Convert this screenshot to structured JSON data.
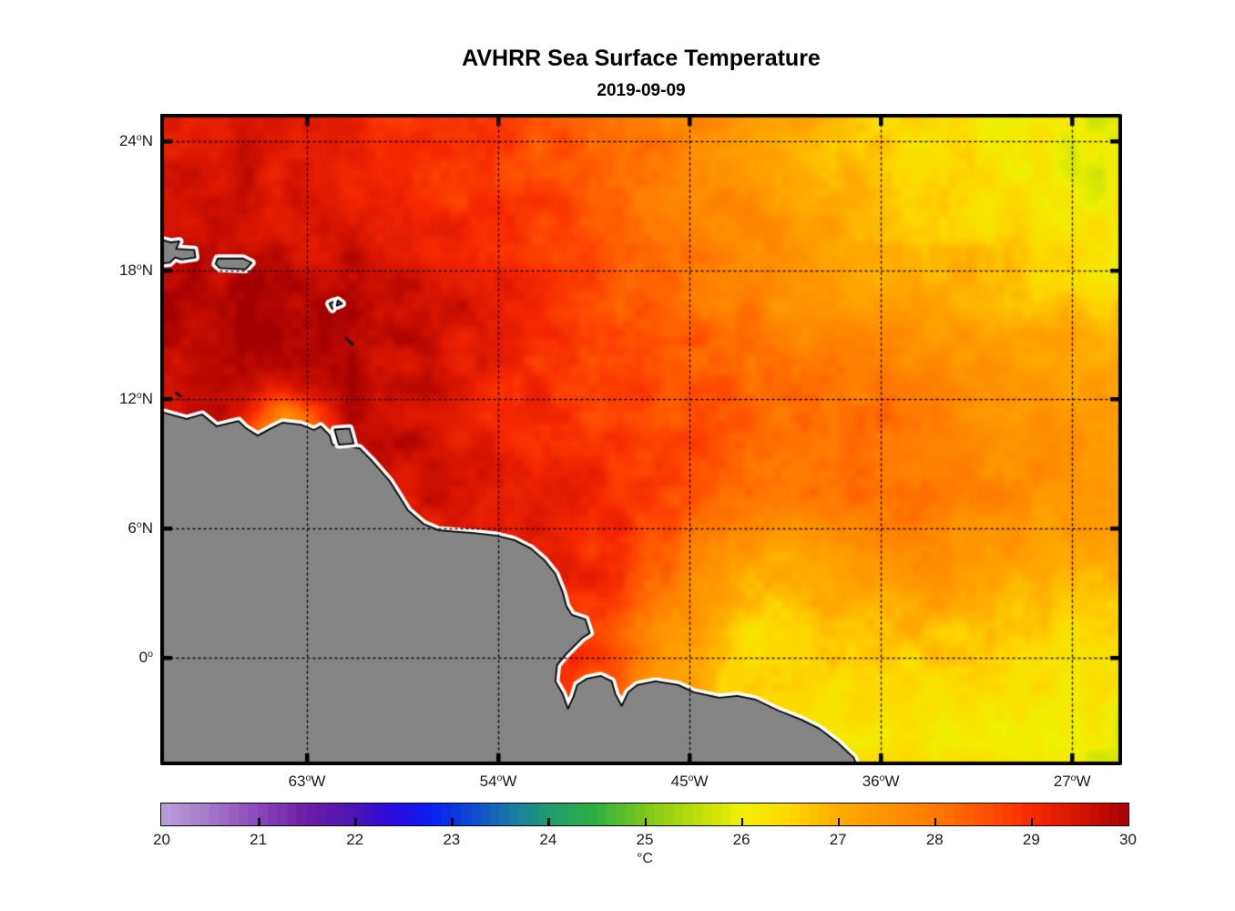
{
  "figure": {
    "title": "AVHRR Sea Surface Temperature",
    "subtitle": "2019-09-09"
  },
  "axes": {
    "degree_glyph": "o",
    "lon_min": -69.9,
    "lon_max": -24.65,
    "lat_min": -5.0,
    "lat_max": 25.27,
    "x_ticks": [
      {
        "lon": -63,
        "text": "63",
        "suffix": "W"
      },
      {
        "lon": -54,
        "text": "54",
        "suffix": "W"
      },
      {
        "lon": -45,
        "text": "45",
        "suffix": "W"
      },
      {
        "lon": -36,
        "text": "36",
        "suffix": "W"
      },
      {
        "lon": -27,
        "text": "27",
        "suffix": "W"
      }
    ],
    "y_ticks": [
      {
        "lat": 24,
        "text": "24",
        "suffix": "N"
      },
      {
        "lat": 18,
        "text": "18",
        "suffix": "N"
      },
      {
        "lat": 12,
        "text": "12",
        "suffix": "N"
      },
      {
        "lat": 6,
        "text": "6",
        "suffix": "N"
      },
      {
        "lat": 0,
        "text": "0",
        "suffix": ""
      }
    ],
    "frame_color": "#000000",
    "grid_style": "dotted"
  },
  "colorbar": {
    "min": 20,
    "max": 30,
    "tick_labels": [
      "20",
      "21",
      "22",
      "23",
      "24",
      "25",
      "26",
      "27",
      "28",
      "29",
      "30"
    ],
    "inner_ticks": [
      21,
      22,
      23,
      24,
      25,
      26,
      27,
      28,
      29
    ],
    "unit": "°C",
    "segments": 100,
    "stops": [
      [
        0.0,
        "#B9A0D8"
      ],
      [
        0.05,
        "#A478CA"
      ],
      [
        0.1,
        "#8A48B8"
      ],
      [
        0.15,
        "#6C1EA4"
      ],
      [
        0.2,
        "#4A14B4"
      ],
      [
        0.24,
        "#2A0ADF"
      ],
      [
        0.28,
        "#0A20F0"
      ],
      [
        0.32,
        "#0E48D0"
      ],
      [
        0.36,
        "#1878A8"
      ],
      [
        0.4,
        "#1F9A70"
      ],
      [
        0.45,
        "#2FB040"
      ],
      [
        0.5,
        "#7CC818"
      ],
      [
        0.55,
        "#B8DC0C"
      ],
      [
        0.6,
        "#F0F000"
      ],
      [
        0.65,
        "#FFD800"
      ],
      [
        0.7,
        "#FFAC00"
      ],
      [
        0.75,
        "#FF9400"
      ],
      [
        0.8,
        "#FF7A00"
      ],
      [
        0.85,
        "#FF5200"
      ],
      [
        0.9,
        "#F62800"
      ],
      [
        0.95,
        "#D41400"
      ],
      [
        1.0,
        "#A40000"
      ]
    ]
  },
  "chart_data": {
    "type": "heatmap",
    "title": "AVHRR Sea Surface Temperature",
    "date": "2019-09-09",
    "variable": "sea surface temperature",
    "units": "degC",
    "colormap_range": [
      20,
      30
    ],
    "lon": [
      -70,
      -67,
      -64,
      -61,
      -58,
      -55,
      -52,
      -49,
      -46,
      -43,
      -40,
      -37,
      -34,
      -31,
      -28,
      -25
    ],
    "lat": [
      25.5,
      22.5,
      19.5,
      16.5,
      13.5,
      10.5,
      7.5,
      4.5,
      1.5,
      -1.5,
      -4.5
    ],
    "sst": [
      [
        29.2,
        29.3,
        29.2,
        29.0,
        28.9,
        28.7,
        28.5,
        28.2,
        27.8,
        27.4,
        27.0,
        26.6,
        26.3,
        26.1,
        26.0,
        25.7
      ],
      [
        29.4,
        29.5,
        29.4,
        29.2,
        29.0,
        28.8,
        28.6,
        28.3,
        27.9,
        27.6,
        27.2,
        26.8,
        26.5,
        26.3,
        26.1,
        26.0
      ],
      [
        29.7,
        29.6,
        29.5,
        29.4,
        29.2,
        29.0,
        28.7,
        28.4,
        28.1,
        27.7,
        27.4,
        27.1,
        26.8,
        26.6,
        26.4,
        26.2
      ],
      [
        29.9,
        30.0,
        29.9,
        29.8,
        29.7,
        29.4,
        29.0,
        28.6,
        28.2,
        27.9,
        27.6,
        27.3,
        27.1,
        26.9,
        26.7,
        26.5
      ],
      [
        29.7,
        29.9,
        30.0,
        29.9,
        29.6,
        29.2,
        28.9,
        28.7,
        28.5,
        28.3,
        28.1,
        27.9,
        27.7,
        27.5,
        27.3,
        27.1
      ],
      [
        29.3,
        29.5,
        27.2,
        29.7,
        29.6,
        29.3,
        29.0,
        28.8,
        28.6,
        28.4,
        28.2,
        28.1,
        27.9,
        27.7,
        27.5,
        27.3
      ],
      [
        29.0,
        29.1,
        29.2,
        29.4,
        29.5,
        29.4,
        29.2,
        29.0,
        28.7,
        28.3,
        28.0,
        28.2,
        28.0,
        27.8,
        27.5,
        27.4
      ],
      [
        28.8,
        28.9,
        29.0,
        29.1,
        29.2,
        29.3,
        29.2,
        29.0,
        28.4,
        27.4,
        26.9,
        27.3,
        27.5,
        27.3,
        27.1,
        27.0
      ],
      [
        28.6,
        28.7,
        28.8,
        28.9,
        29.0,
        29.1,
        29.0,
        28.8,
        27.6,
        26.6,
        26.5,
        26.8,
        26.9,
        26.8,
        26.6,
        26.5
      ],
      [
        28.5,
        28.6,
        28.7,
        28.8,
        28.9,
        28.9,
        28.8,
        28.3,
        27.2,
        26.5,
        26.3,
        26.4,
        26.4,
        26.3,
        26.3,
        26.1
      ],
      [
        28.4,
        28.5,
        28.6,
        28.7,
        28.8,
        28.8,
        28.6,
        28.0,
        27.0,
        26.5,
        26.4,
        26.3,
        26.2,
        26.2,
        26.1,
        25.8
      ]
    ],
    "noise": {
      "amp1": 0.5,
      "freq1": 0.8,
      "amp2": 0.25,
      "freq2": 2.3
    },
    "land_color": "#858585",
    "coast_outline_color": "#000000",
    "coast_halo_color": "#FFFFFF",
    "land_polygons": {
      "mainland": [
        [
          -70.5,
          11.6
        ],
        [
          -68.66,
          11.09
        ],
        [
          -67.93,
          11.3
        ],
        [
          -67.24,
          10.75
        ],
        [
          -66.22,
          11.0
        ],
        [
          -65.87,
          10.66
        ],
        [
          -65.32,
          10.32
        ],
        [
          -64.68,
          10.66
        ],
        [
          -64.16,
          10.92
        ],
        [
          -63.3,
          10.83
        ],
        [
          -62.66,
          10.58
        ],
        [
          -62.36,
          10.75
        ],
        [
          -61.93,
          10.33
        ],
        [
          -61.81,
          9.9
        ],
        [
          -60.52,
          9.73
        ],
        [
          -59.97,
          9.18
        ],
        [
          -59.11,
          8.21
        ],
        [
          -58.25,
          6.85
        ],
        [
          -57.52,
          6.22
        ],
        [
          -56.8,
          5.92
        ],
        [
          -55.17,
          5.79
        ],
        [
          -54.1,
          5.67
        ],
        [
          -53.24,
          5.46
        ],
        [
          -52.47,
          5.08
        ],
        [
          -51.83,
          4.53
        ],
        [
          -51.31,
          3.89
        ],
        [
          -50.97,
          3.05
        ],
        [
          -50.8,
          2.41
        ],
        [
          -50.54,
          1.99
        ],
        [
          -49.9,
          1.78
        ],
        [
          -49.69,
          1.14
        ],
        [
          -50.03,
          0.93
        ],
        [
          -50.8,
          0.17
        ],
        [
          -51.23,
          -0.34
        ],
        [
          -51.31,
          -1.1
        ],
        [
          -50.97,
          -1.69
        ],
        [
          -50.72,
          -2.37
        ],
        [
          -50.46,
          -1.82
        ],
        [
          -50.29,
          -1.27
        ],
        [
          -49.82,
          -0.97
        ],
        [
          -49.17,
          -0.85
        ],
        [
          -48.66,
          -1.1
        ],
        [
          -48.49,
          -1.69
        ],
        [
          -48.19,
          -2.24
        ],
        [
          -47.89,
          -1.61
        ],
        [
          -47.46,
          -1.27
        ],
        [
          -46.6,
          -1.1
        ],
        [
          -45.53,
          -1.27
        ],
        [
          -44.8,
          -1.61
        ],
        [
          -43.6,
          -1.86
        ],
        [
          -42.75,
          -1.78
        ],
        [
          -41.89,
          -1.95
        ],
        [
          -40.82,
          -2.46
        ],
        [
          -39.75,
          -2.88
        ],
        [
          -38.89,
          -3.3
        ],
        [
          -38.04,
          -3.94
        ],
        [
          -37.27,
          -4.66
        ],
        [
          -36.9,
          -5.6
        ],
        [
          -70.5,
          -5.6
        ]
      ],
      "hispaniola": [
        [
          -70.5,
          19.6
        ],
        [
          -69.4,
          19.3
        ],
        [
          -69.0,
          19.35
        ],
        [
          -69.15,
          19.0
        ],
        [
          -68.3,
          18.95
        ],
        [
          -68.25,
          18.6
        ],
        [
          -68.9,
          18.5
        ],
        [
          -69.2,
          18.6
        ],
        [
          -69.45,
          18.35
        ],
        [
          -70.5,
          18.25
        ]
      ],
      "puerto_rico": [
        [
          -67.2,
          18.55
        ],
        [
          -66.0,
          18.55
        ],
        [
          -65.6,
          18.35
        ],
        [
          -65.9,
          18.05
        ],
        [
          -67.1,
          18.1
        ],
        [
          -67.3,
          18.3
        ]
      ],
      "trinidad": [
        [
          -61.7,
          10.6
        ],
        [
          -61.0,
          10.65
        ],
        [
          -60.8,
          9.95
        ],
        [
          -61.5,
          9.9
        ]
      ],
      "guadeloupe_a": [
        [
          -61.95,
          16.45
        ],
        [
          -61.75,
          16.55
        ],
        [
          -61.8,
          16.2
        ]
      ],
      "guadeloupe_b": [
        [
          -61.55,
          16.6
        ],
        [
          -61.35,
          16.45
        ],
        [
          -61.6,
          16.35
        ]
      ]
    },
    "island_slivers": [
      [
        [
          -61.15,
          14.85
        ],
        [
          -60.85,
          14.55
        ]
      ],
      [
        [
          -69.15,
          12.3
        ],
        [
          -68.95,
          12.15
        ]
      ]
    ]
  }
}
